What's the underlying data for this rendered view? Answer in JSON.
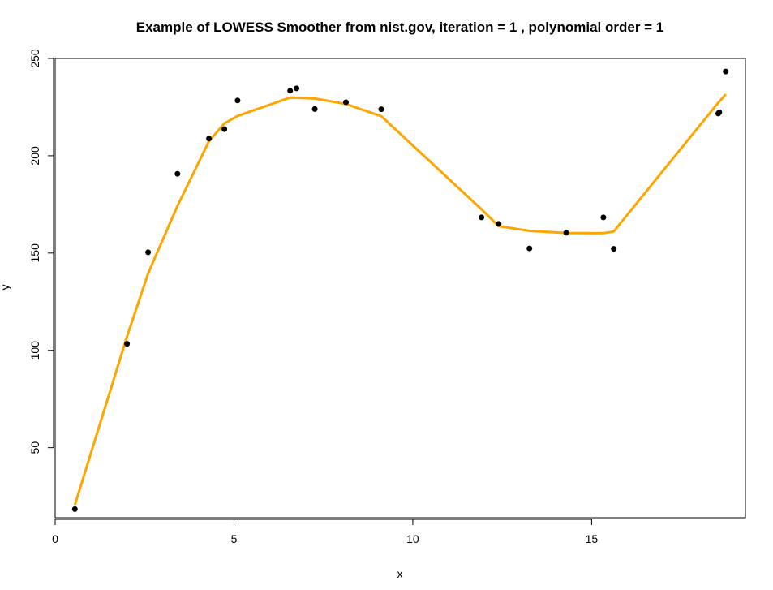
{
  "chart_data": {
    "type": "scatter",
    "title": "Example of LOWESS Smoother from nist.gov, iteration =  1 , polynomial order = 1",
    "xlabel": "x",
    "ylabel": "y",
    "xlim": [
      0,
      19.3
    ],
    "ylim": [
      14,
      250
    ],
    "x_ticks": [
      {
        "value": 0,
        "label": "0"
      },
      {
        "value": 5,
        "label": "5"
      },
      {
        "value": 10,
        "label": "10"
      },
      {
        "value": 15,
        "label": "15"
      }
    ],
    "y_ticks": [
      {
        "value": 50,
        "label": "50"
      },
      {
        "value": 100,
        "label": "100"
      },
      {
        "value": 150,
        "label": "150"
      },
      {
        "value": 200,
        "label": "200"
      },
      {
        "value": 250,
        "label": "250"
      }
    ],
    "grid": false,
    "series": [
      {
        "type": "scatter",
        "color": "#000000",
        "points": [
          [
            0.55,
            18.4
          ],
          [
            2.01,
            103.4
          ],
          [
            2.6,
            150.4
          ],
          [
            3.42,
            190.7
          ],
          [
            4.3,
            208.8
          ],
          [
            4.73,
            213.7
          ],
          [
            5.1,
            228.4
          ],
          [
            6.57,
            233.4
          ],
          [
            6.75,
            234.6
          ],
          [
            7.26,
            224.0
          ],
          [
            8.13,
            227.5
          ],
          [
            9.12,
            223.9
          ],
          [
            11.92,
            168.3
          ],
          [
            12.4,
            165.0
          ],
          [
            13.26,
            152.4
          ],
          [
            14.29,
            160.4
          ],
          [
            15.33,
            168.3
          ],
          [
            15.62,
            152.2
          ],
          [
            18.54,
            221.7
          ],
          [
            18.57,
            222.3
          ],
          [
            18.75,
            243.3
          ]
        ]
      },
      {
        "type": "line",
        "color": "#ffa500",
        "points": [
          [
            0.55,
            20.6
          ],
          [
            2.01,
            107.2
          ],
          [
            2.6,
            139.6
          ],
          [
            3.42,
            174.3
          ],
          [
            4.3,
            207.5
          ],
          [
            4.73,
            216.6
          ],
          [
            5.1,
            220.5
          ],
          [
            6.57,
            229.9
          ],
          [
            6.75,
            229.8
          ],
          [
            7.26,
            229.4
          ],
          [
            8.13,
            226.6
          ],
          [
            9.12,
            220.3
          ],
          [
            11.92,
            172.5
          ],
          [
            12.4,
            163.8
          ],
          [
            13.26,
            161.4
          ],
          [
            14.29,
            160.3
          ],
          [
            15.33,
            160.2
          ],
          [
            15.62,
            161.1
          ],
          [
            18.54,
            227.3
          ],
          [
            18.57,
            227.8
          ],
          [
            18.75,
            231.6
          ]
        ]
      }
    ]
  }
}
